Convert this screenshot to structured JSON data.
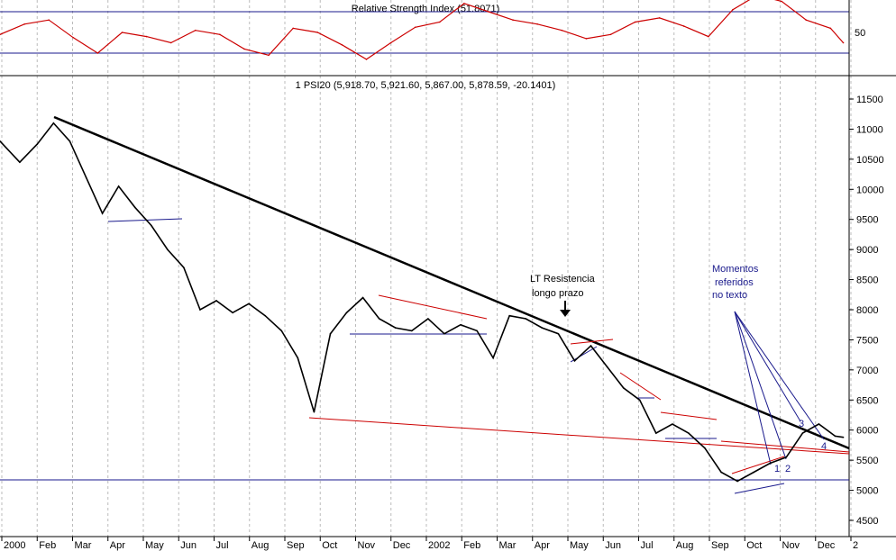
{
  "colors": {
    "background": "#ffffff",
    "price": "#000000",
    "rsi": "#cc0000",
    "blue_line": "#1a1a8c",
    "red_line": "#cc0000",
    "trend_line": "#000000",
    "grid": "#bbbbbb"
  },
  "chart_data": [
    {
      "type": "line",
      "title": "Relative Strength Index (51.8071)",
      "ylim": [
        0,
        100
      ],
      "y_ticks": [
        "50"
      ],
      "reference_levels": [
        30,
        70
      ],
      "grid": "vertical-dotted",
      "series": [
        {
          "name": "Relative Strength Index",
          "x": [
            "2000-01-03",
            "2000-01-24",
            "2000-02-14",
            "2000-03-06",
            "2000-03-27",
            "2000-04-17",
            "2000-05-08",
            "2000-05-29",
            "2000-06-19",
            "2000-07-10",
            "2000-07-31",
            "2000-08-21",
            "2000-09-11",
            "2000-10-02",
            "2000-10-23",
            "2000-11-13",
            "2000-12-04",
            "2000-12-25",
            "2001-01-15",
            "2001-02-05",
            "2001-02-26",
            "2001-03-19",
            "2001-04-09",
            "2001-04-30",
            "2001-05-21",
            "2001-06-11",
            "2001-07-02",
            "2001-07-23",
            "2001-08-13",
            "2001-09-03",
            "2001-09-24",
            "2001-10-15",
            "2001-11-05",
            "2001-11-26",
            "2001-12-17",
            "2001-12-28"
          ],
          "values": [
            48,
            58,
            62,
            45,
            30,
            50,
            46,
            40,
            52,
            48,
            34,
            28,
            54,
            50,
            38,
            24,
            40,
            55,
            60,
            78,
            70,
            62,
            58,
            52,
            44,
            48,
            60,
            64,
            56,
            46,
            72,
            86,
            80,
            62,
            54,
            40
          ]
        }
      ]
    },
    {
      "type": "line",
      "title": "1 PSI20 (5,918.70, 5,921.60, 5,867.00, 5,878.59, -20.1401)",
      "ylim": [
        4200,
        11800
      ],
      "y_ticks": [
        "11500",
        "11000",
        "10500",
        "10000",
        "9500",
        "9000",
        "8500",
        "8000",
        "7500",
        "7000",
        "6500",
        "6000",
        "5500",
        "5000",
        "4500"
      ],
      "x_ticks": [
        "2000",
        "Feb",
        "Mar",
        "Apr",
        "May",
        "Jun",
        "Jul",
        "Aug",
        "Sep",
        "Oct",
        "Nov",
        "Dec",
        "2002",
        "Feb",
        "Mar",
        "Apr",
        "May",
        "Jun",
        "Jul",
        "Aug",
        "Sep",
        "Oct",
        "Nov",
        "Dec",
        "2"
      ],
      "grid": "vertical-dotted",
      "series": [
        {
          "name": "PSI20",
          "x": [
            "2000-01-03",
            "2000-01-20",
            "2000-02-04",
            "2000-02-18",
            "2000-03-03",
            "2000-03-17",
            "2000-03-31",
            "2000-04-14",
            "2000-04-28",
            "2000-05-12",
            "2000-05-26",
            "2000-06-09",
            "2000-06-23",
            "2000-07-07",
            "2000-07-21",
            "2000-08-04",
            "2000-08-18",
            "2000-09-01",
            "2000-09-15",
            "2000-09-29",
            "2000-10-13",
            "2000-10-27",
            "2000-11-10",
            "2000-11-24",
            "2000-12-08",
            "2000-12-22",
            "2001-01-05",
            "2001-01-19",
            "2001-02-02",
            "2001-02-16",
            "2001-03-02",
            "2001-03-16",
            "2001-03-30",
            "2001-04-13",
            "2001-04-27",
            "2001-05-11",
            "2001-05-25",
            "2001-06-08",
            "2001-06-22",
            "2001-07-06",
            "2001-07-20",
            "2001-08-03",
            "2001-08-17",
            "2001-08-31",
            "2001-09-14",
            "2001-09-28",
            "2001-10-12",
            "2001-10-26",
            "2001-11-09",
            "2001-11-23",
            "2001-12-07",
            "2001-12-21",
            "2001-12-28"
          ],
          "values": [
            10800,
            10450,
            10750,
            11100,
            10800,
            10200,
            9600,
            10050,
            9700,
            9400,
            9000,
            8700,
            8000,
            8150,
            7950,
            8100,
            7900,
            7650,
            7200,
            6300,
            7600,
            7950,
            8200,
            7850,
            7700,
            7650,
            7850,
            7600,
            7750,
            7650,
            7200,
            7900,
            7850,
            7700,
            7600,
            7150,
            7400,
            7050,
            6700,
            6500,
            5950,
            6100,
            5950,
            5700,
            5300,
            5150,
            5300,
            5450,
            5550,
            5950,
            6100,
            5900,
            5880
          ]
        }
      ]
    }
  ],
  "annotations": {
    "lt_resistance_line1": "LT Resistencia",
    "lt_resistance_line2": "longo prazo",
    "momentos_line1": "Momentos",
    "momentos_line2": "referidos",
    "momentos_line3": "no texto",
    "markers": [
      "1",
      "2",
      "3",
      "4"
    ]
  }
}
